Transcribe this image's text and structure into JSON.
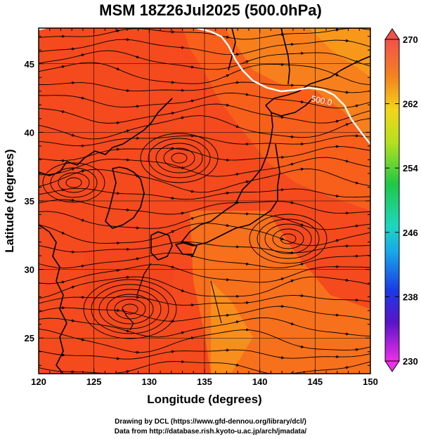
{
  "title": "MSM 18Z26Jul2025 (500.0hPa)",
  "x_axis": {
    "label": "Longitude (degrees)",
    "ticks": [
      "120",
      "125",
      "130",
      "135",
      "140",
      "145",
      "150"
    ],
    "range": [
      120,
      150
    ]
  },
  "y_axis": {
    "label": "Latitude  (degrees)",
    "ticks": [
      "25",
      "30",
      "35",
      "40",
      "45"
    ],
    "range": [
      22.4,
      47.6
    ]
  },
  "colorbar": {
    "ticks": [
      "270",
      "262",
      "254",
      "246",
      "238",
      "230"
    ],
    "range": [
      230,
      270
    ]
  },
  "contour": {
    "label": "500.0"
  },
  "credits": {
    "line1": "Drawing by DCL (https://www.gfd-dennou.org/library/dcl/)",
    "line2": "Data from http://database.rish.kyoto-u.ac.jp/arch/jmadata/"
  },
  "colors": {
    "field_main": "#f44a1e",
    "field_warm": "#f75a1a",
    "field_orange": "#f7861c",
    "coast": "#000000",
    "contour": "#ffffff"
  }
}
